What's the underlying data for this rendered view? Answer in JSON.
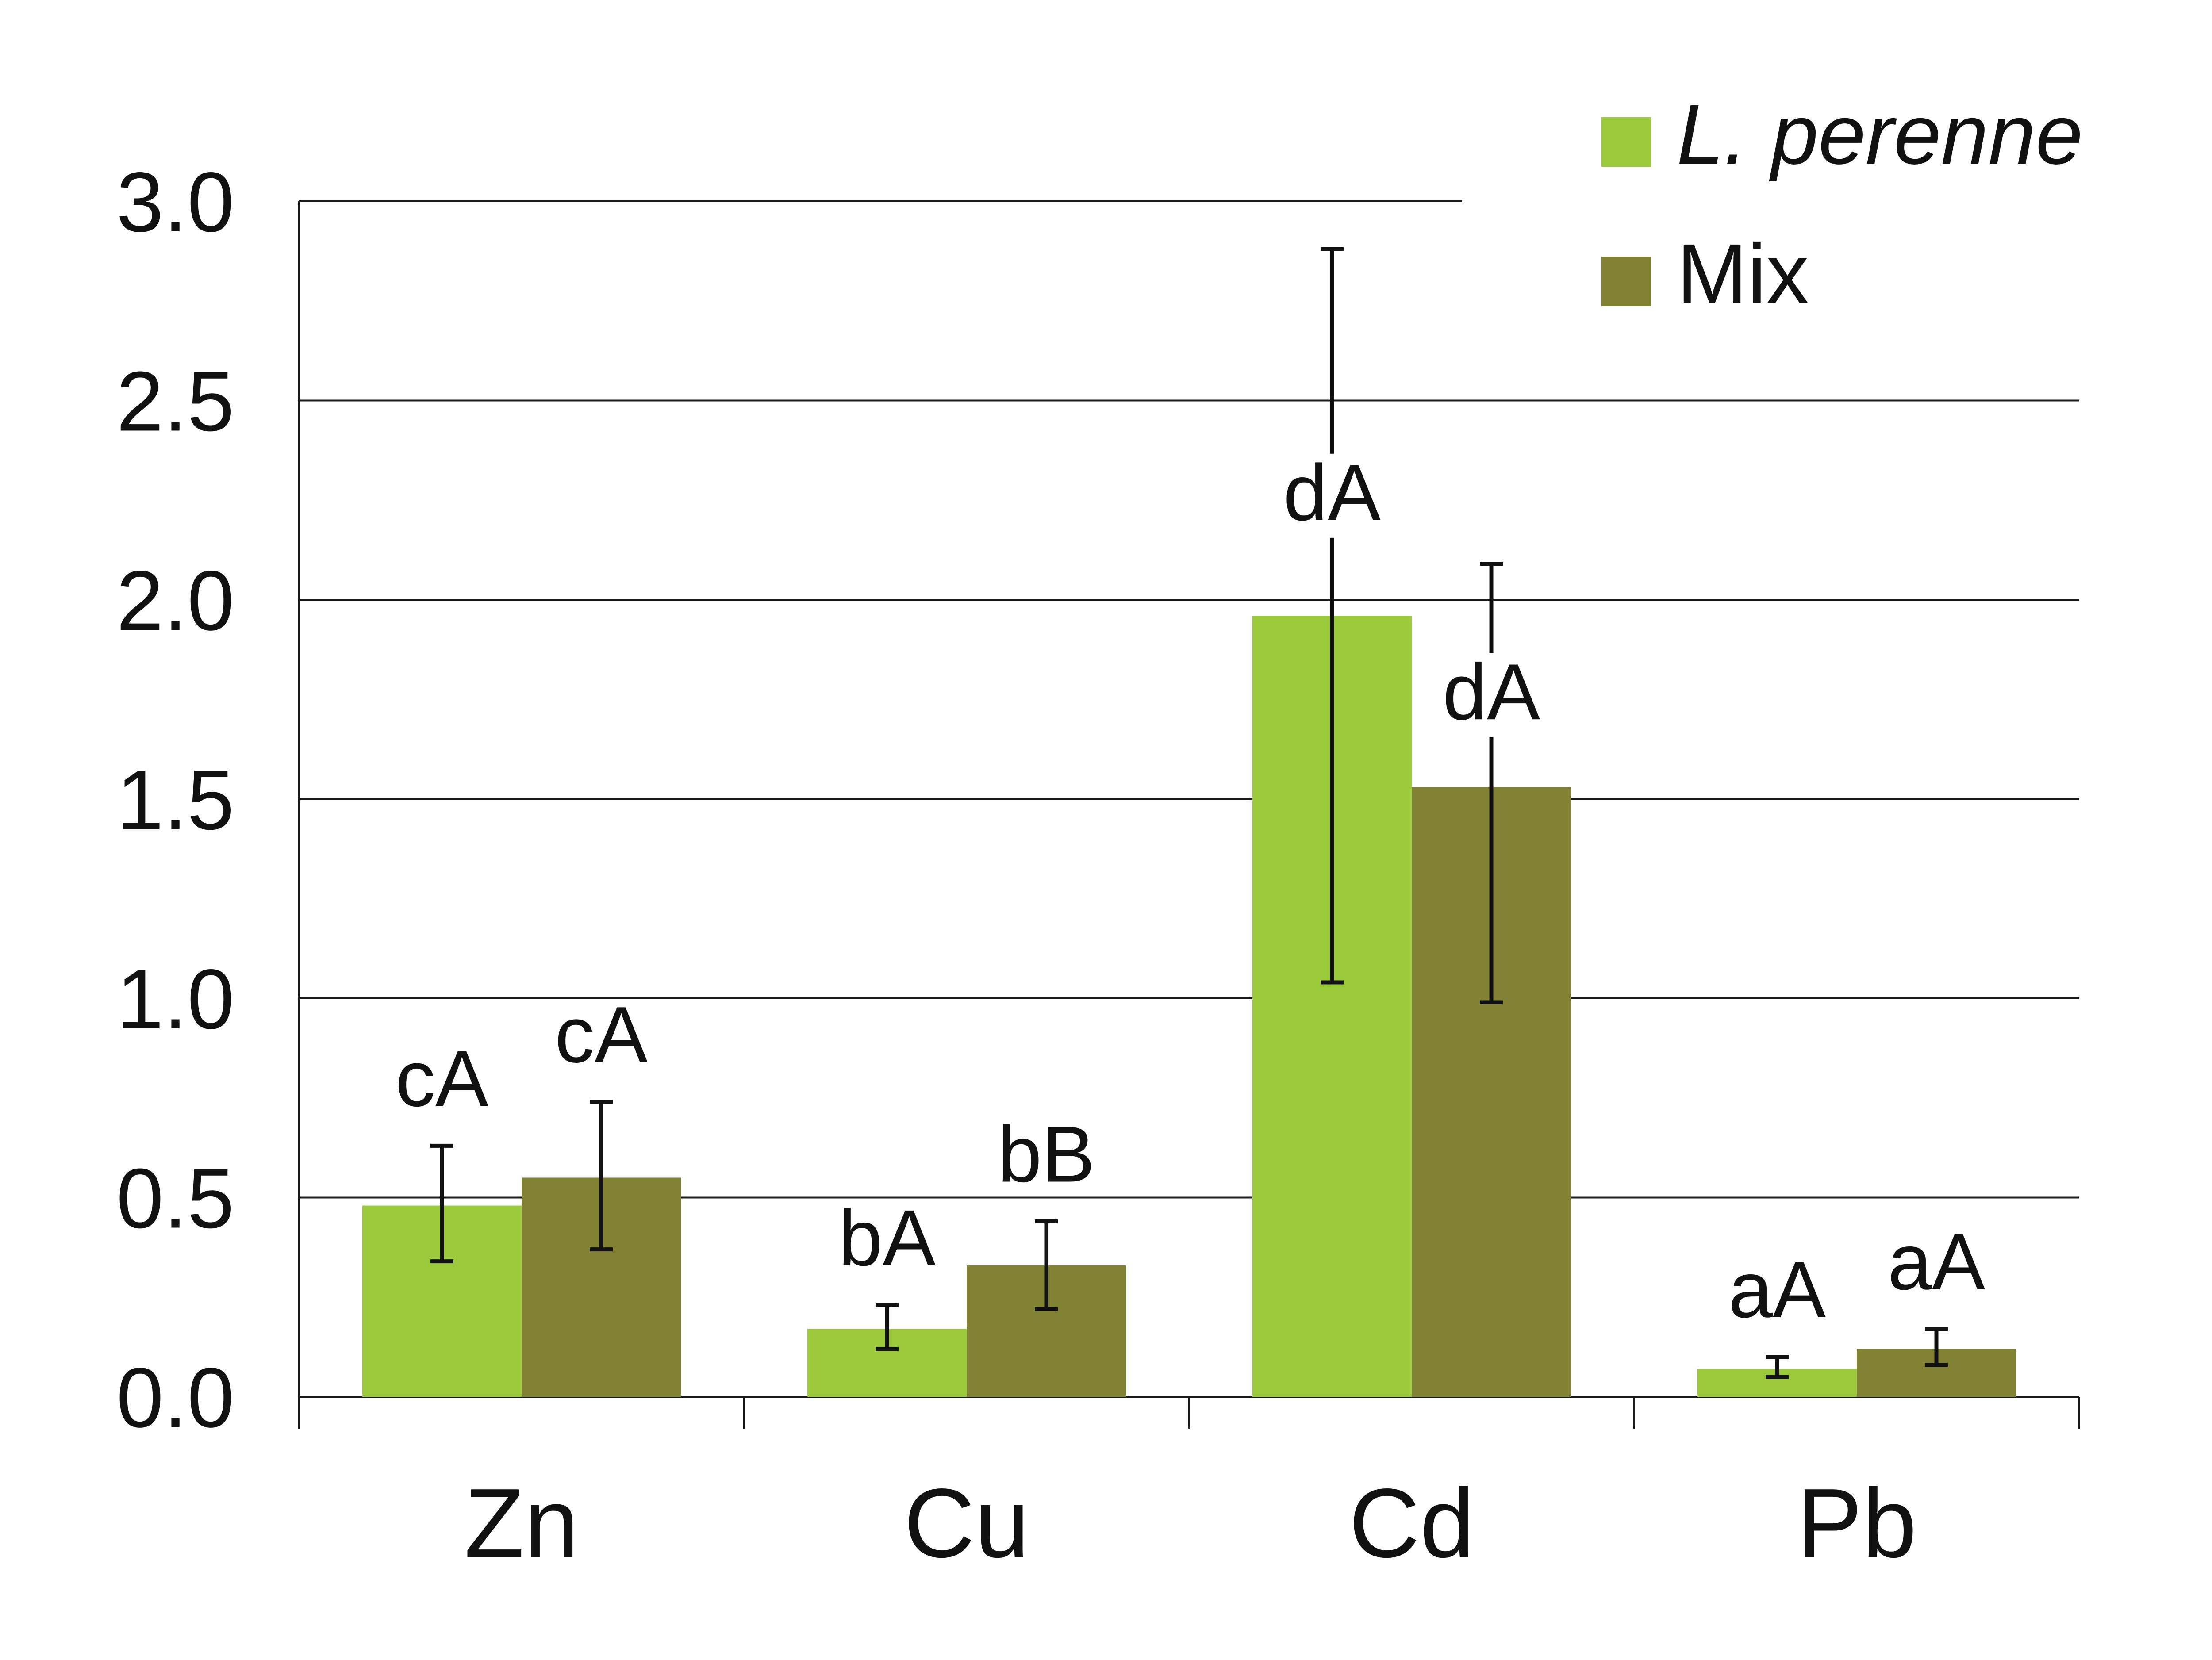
{
  "chart_data": {
    "type": "bar",
    "title": "",
    "xlabel": "",
    "ylabel": "",
    "categories": [
      "Zn",
      "Cu",
      "Cd",
      "Pb"
    ],
    "ylim": [
      0,
      3.0
    ],
    "yticks": [
      "0.0",
      "0.5",
      "1.0",
      "1.5",
      "2.0",
      "2.5",
      "3.0"
    ],
    "grid": true,
    "legend_position": "top-right",
    "series": [
      {
        "name": "L. perenne",
        "italic": true,
        "color": "#9aca3c",
        "values": [
          0.48,
          0.17,
          1.96,
          0.07
        ],
        "err_low": [
          0.34,
          0.12,
          1.04,
          0.05
        ],
        "err_high": [
          0.63,
          0.23,
          2.88,
          0.1
        ],
        "labels": [
          "cA",
          "bA",
          "dA",
          "aA"
        ]
      },
      {
        "name": "Mix",
        "italic": false,
        "color": "#808133",
        "values": [
          0.55,
          0.33,
          1.53,
          0.12
        ],
        "err_low": [
          0.37,
          0.22,
          0.99,
          0.08
        ],
        "err_high": [
          0.74,
          0.44,
          2.09,
          0.17
        ],
        "labels": [
          "cA",
          "bB",
          "dA",
          "aA"
        ]
      }
    ]
  }
}
